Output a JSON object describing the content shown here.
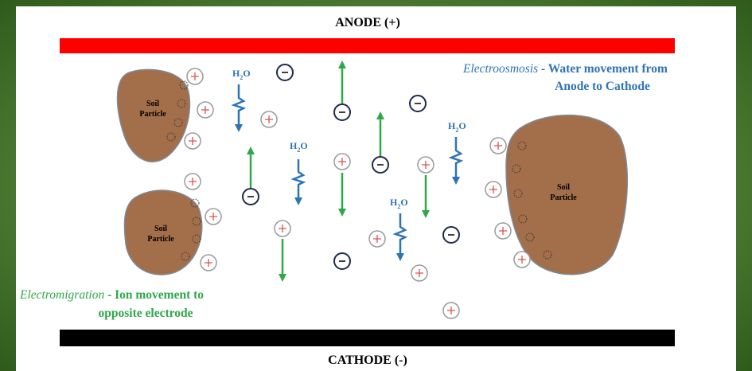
{
  "electrodes": {
    "anode": "ANODE (+)",
    "cathode": "CATHODE (-)"
  },
  "particles": [
    {
      "label": [
        "Soil",
        "Particle"
      ]
    },
    {
      "label": [
        "Soil",
        "Particle"
      ]
    },
    {
      "label": [
        "Soil",
        "Particle"
      ]
    }
  ],
  "water_labels": [
    {
      "h": "H",
      "sub": "2",
      "o": "O"
    },
    {
      "h": "H",
      "sub": "2",
      "o": "O"
    },
    {
      "h": "H",
      "sub": "2",
      "o": "O"
    },
    {
      "h": "H",
      "sub": "2",
      "o": "O"
    }
  ],
  "legends": {
    "electroosmosis": {
      "term": "Electroosmosis",
      "text": " - Water movement from",
      "line2": "Anode to Cathode"
    },
    "electromigration": {
      "term": "Electromigration",
      "text": " - Ion movement to",
      "line2": "opposite electrode"
    }
  }
}
